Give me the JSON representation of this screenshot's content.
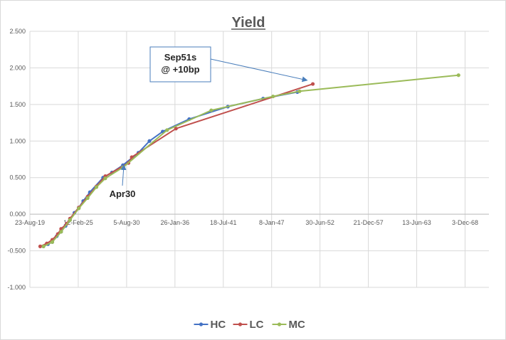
{
  "chart_data": {
    "type": "line",
    "title": "Yield",
    "xlabel": "",
    "ylabel": "",
    "x_type": "date",
    "xlim": [
      "2019-08-23",
      "2071-08-17"
    ],
    "ylim": [
      -1.0,
      2.5
    ],
    "y_ticks": [
      -1.0,
      -0.5,
      0.0,
      0.5,
      1.0,
      1.5,
      2.0,
      2.5
    ],
    "y_tick_labels": [
      "-1.000",
      "-0.500",
      "0.000",
      "0.500",
      "1.000",
      "1.500",
      "2.000",
      "2.500"
    ],
    "x_ticks": [
      "2019-08-23",
      "2025-02-12",
      "2030-08-05",
      "2036-01-26",
      "2041-07-18",
      "2047-01-08",
      "2052-06-30",
      "2057-12-21",
      "2063-06-13",
      "2068-12-03"
    ],
    "x_tick_labels": [
      "23-Aug-19",
      "12-Feb-25",
      "5-Aug-30",
      "26-Jan-36",
      "18-Jul-41",
      "8-Jan-47",
      "30-Jun-52",
      "21-Dec-57",
      "13-Jun-63",
      "3-Dec-68"
    ],
    "grid": true,
    "legend_position": "bottom",
    "series": [
      {
        "name": "HC",
        "color": "#4472C4",
        "points": [
          [
            "2021-03-07",
            -0.44
          ],
          [
            "2021-09-07",
            -0.41
          ],
          [
            "2022-03-07",
            -0.38
          ],
          [
            "2022-09-07",
            -0.3
          ],
          [
            "2023-03-07",
            -0.24
          ],
          [
            "2023-09-07",
            -0.16
          ],
          [
            "2024-03-07",
            -0.08
          ],
          [
            "2024-09-07",
            0.02
          ],
          [
            "2025-03-07",
            0.09
          ],
          [
            "2025-09-07",
            0.18
          ],
          [
            "2026-06-07",
            0.3
          ],
          [
            "2027-12-07",
            0.5
          ],
          [
            "2028-12-07",
            0.57
          ],
          [
            "2030-03-07",
            0.67
          ],
          [
            "2031-12-07",
            0.84
          ],
          [
            "2033-03-07",
            1.0
          ],
          [
            "2034-09-07",
            1.13
          ],
          [
            "2037-09-07",
            1.3
          ],
          [
            "2042-01-22",
            1.47
          ],
          [
            "2046-01-22",
            1.58
          ],
          [
            "2049-12-07",
            1.67
          ]
        ]
      },
      {
        "name": "LC",
        "color": "#C0504D",
        "points": [
          [
            "2020-10-22",
            -0.44
          ],
          [
            "2021-07-22",
            -0.4
          ],
          [
            "2022-03-07",
            -0.35
          ],
          [
            "2022-10-22",
            -0.27
          ],
          [
            "2023-03-07",
            -0.2
          ],
          [
            "2023-10-22",
            -0.13
          ],
          [
            "2024-03-07",
            -0.06
          ],
          [
            "2025-03-07",
            0.09
          ],
          [
            "2026-03-07",
            0.24
          ],
          [
            "2027-03-07",
            0.38
          ],
          [
            "2028-03-07",
            0.52
          ],
          [
            "2030-10-22",
            0.7
          ],
          [
            "2031-03-07",
            0.78
          ],
          [
            "2036-03-07",
            1.17
          ],
          [
            "2051-09-07",
            1.78
          ]
        ]
      },
      {
        "name": "MC",
        "color": "#9BBB59",
        "points": [
          [
            "2021-03-07",
            -0.44
          ],
          [
            "2022-03-07",
            -0.38
          ],
          [
            "2023-03-07",
            -0.24
          ],
          [
            "2024-03-07",
            -0.08
          ],
          [
            "2025-03-07",
            0.08
          ],
          [
            "2026-03-07",
            0.22
          ],
          [
            "2027-03-07",
            0.37
          ],
          [
            "2028-03-07",
            0.49
          ],
          [
            "2030-03-07",
            0.64
          ],
          [
            "2035-03-07",
            1.15
          ],
          [
            "2040-03-07",
            1.42
          ],
          [
            "2047-03-07",
            1.61
          ],
          [
            "2050-03-07",
            1.68
          ],
          [
            "2068-03-07",
            1.9
          ]
        ]
      }
    ],
    "annotations": [
      {
        "text_lines": [
          "Sep51s",
          "@ +10bp"
        ],
        "arrow_target": [
          "2051-09-07",
          1.85
        ]
      },
      {
        "text_lines": [
          "Apr30"
        ],
        "arrow_target": [
          "2030-04-15",
          0.75
        ]
      }
    ]
  }
}
